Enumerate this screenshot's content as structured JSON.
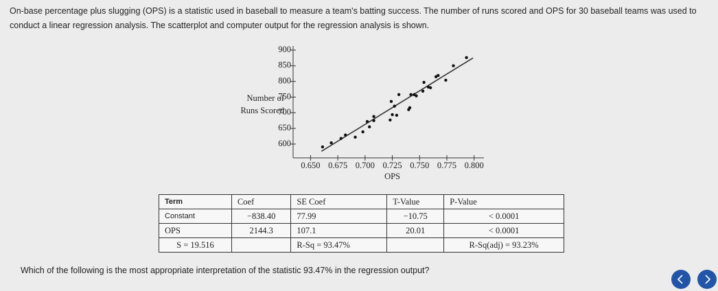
{
  "intro": "On-base percentage plus slugging (OPS) is a statistic used in baseball to measure a team's batting success. The number of runs scored and OPS for 30 baseball teams was used to conduct a linear regression analysis. The scatterplot and computer output for the regression analysis is shown.",
  "chart_data": {
    "type": "scatter",
    "xlabel": "OPS",
    "ylabel_lines": [
      "Number of",
      "Runs Scored"
    ],
    "x": [
      0.661,
      0.669,
      0.678,
      0.682,
      0.691,
      0.698,
      0.702,
      0.704,
      0.708,
      0.708,
      0.723,
      0.725,
      0.729,
      0.724,
      0.727,
      0.731,
      0.74,
      0.741,
      0.742,
      0.745,
      0.747,
      0.753,
      0.754,
      0.758,
      0.76,
      0.765,
      0.767,
      0.774,
      0.781,
      0.793
    ],
    "values": [
      591,
      604,
      618,
      629,
      622,
      639,
      672,
      655,
      688,
      675,
      677,
      694,
      692,
      736,
      721,
      758,
      710,
      716,
      758,
      758,
      754,
      769,
      797,
      782,
      780,
      815,
      819,
      804,
      850,
      876
    ],
    "color": "#111111",
    "trend_line": {
      "x": [
        0.66,
        0.799
      ],
      "values": [
        577,
        875
      ],
      "color": "#333333"
    },
    "xlim": [
      0.634,
      0.809
    ],
    "xticks": [
      {
        "value": 0.65,
        "label": "0.650"
      },
      {
        "value": 0.675,
        "label": "0.675"
      },
      {
        "value": 0.7,
        "label": "0.700"
      },
      {
        "value": 0.725,
        "label": "0.725"
      },
      {
        "value": 0.75,
        "label": "0.750"
      },
      {
        "value": 0.775,
        "label": "0.775"
      },
      {
        "value": 0.8,
        "label": "0.800"
      }
    ],
    "ylim": [
      556,
      900
    ],
    "yticks": [
      600,
      650,
      700,
      750,
      800,
      850,
      900
    ]
  },
  "table": {
    "header": [
      "Term",
      "Coef",
      "SE Coef",
      "T-Value",
      "P-Value"
    ],
    "rows": [
      [
        "Constant",
        "−838.40",
        "77.99",
        "−10.75",
        "< 0.0001"
      ],
      [
        "OPS",
        "2144.3",
        "107.1",
        "20.01",
        "< 0.0001"
      ]
    ],
    "summary": [
      "S = 19.516",
      "R-Sq = 93.47%",
      "R-Sq(adj) = 93.23%"
    ]
  },
  "question": "Which of the following is the most appropriate interpretation of the statistic 93.47% in the regression output?"
}
